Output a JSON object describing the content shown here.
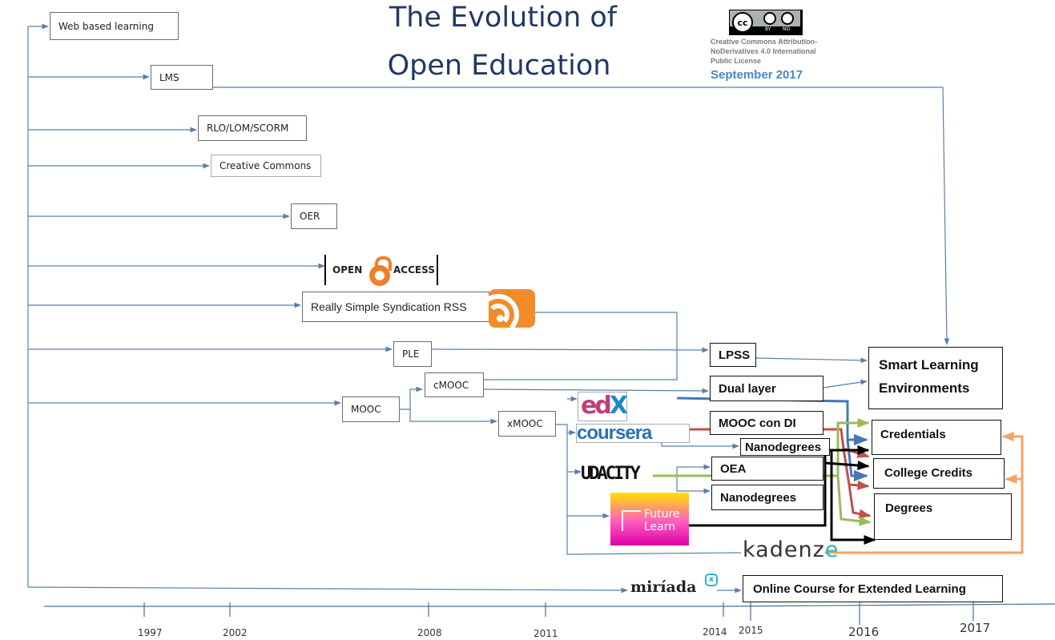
{
  "title": {
    "line1": "The Evolution of",
    "line2": "Open Education"
  },
  "license": {
    "badge": {
      "cc": "cc",
      "by": "BY",
      "nd": "ND"
    },
    "lines": [
      "Creative Commons Attribution-",
      "NoDerivatives 4.0 International",
      "Public License"
    ],
    "date": "September 2017"
  },
  "nodes": {
    "web_based_learning": "Web based learning",
    "lms": "LMS",
    "rlo": "RLO/LOM/SCORM",
    "creative_commons": "Creative Commons",
    "oer": "OER",
    "rss": "Really Simple Syndication RSS",
    "ple": "PLE",
    "mooc": "MOOC",
    "cmooc": "cMOOC",
    "xmooc": "xMOOC",
    "lpss": "LPSS",
    "dual_layer": "Dual layer",
    "mooc_con_di": "MOOC con DI",
    "nanodegrees_1": "Nanodegrees",
    "oea": "OEA",
    "nanodegrees_2": "Nanodegrees",
    "smart_learning": "Smart Learning Environments",
    "credentials": "Credentials",
    "college_credits": "College Credits",
    "degrees": "Degrees",
    "online_course": "Online Course for Extended Learning"
  },
  "logos": {
    "open_access": {
      "left": "OPEN",
      "right": "ACCESS"
    },
    "edx": {
      "e": "e",
      "d": "d",
      "x": "X"
    },
    "coursera": "coursera",
    "udacity": "UDACITY",
    "futurelearn": {
      "line1": "Future",
      "line2": "Learn"
    },
    "kadenze": {
      "main": "kadenz",
      "last": "e"
    },
    "miriada": "miríada",
    "miriada_badge": "x"
  },
  "timeline": {
    "years": [
      "1997",
      "2002",
      "2008",
      "2011",
      "2014",
      "2015",
      "2016",
      "2017"
    ]
  },
  "colors": {
    "title": "#203864",
    "arrow_grey": "#5b7fa6",
    "blue": "#4577b8",
    "red": "#c0504d",
    "green": "#9bbb59",
    "black": "#000000",
    "orange": "#f4a460",
    "date": "#4a86c5"
  }
}
